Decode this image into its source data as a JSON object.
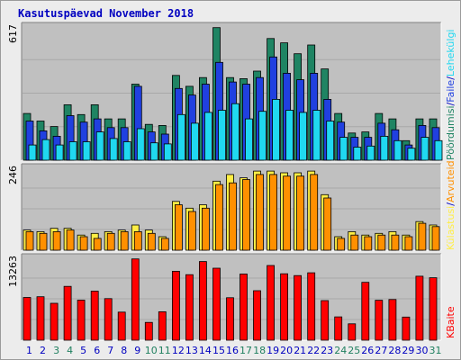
{
  "title": "Kasutuspäevad November 2018",
  "colors": {
    "visits": "#1f8463",
    "pages": "#2040e0",
    "files": "#20d8f0",
    "hits": "#ff9000",
    "sites": "#ffee44",
    "kbytes": "#ff0000",
    "day_weekday": "#0000c0",
    "day_weekend": "#208060",
    "panel": "#c0c0c0"
  },
  "legend": {
    "top": [
      {
        "text": "Pöördumisi",
        "color": "#1f8463"
      },
      {
        "text": "/",
        "color": "#0000c0"
      },
      {
        "text": "Faile",
        "color": "#2040e0"
      },
      {
        "text": "/",
        "color": "#0000c0"
      },
      {
        "text": "Lehekülgi",
        "color": "#20d8f0"
      }
    ],
    "middle": [
      {
        "text": "Külastusi",
        "color": "#ffee44"
      },
      {
        "text": "/",
        "color": "#0000c0"
      },
      {
        "text": "Arvuteid",
        "color": "#ff9000"
      }
    ],
    "bottom": [
      {
        "text": "KBaite",
        "color": "#ff0000"
      }
    ]
  },
  "chart_data": {
    "type": "bar",
    "x": [
      "1",
      "2",
      "3",
      "4",
      "5",
      "6",
      "7",
      "8",
      "9",
      "10",
      "11",
      "12",
      "13",
      "14",
      "15",
      "16",
      "17",
      "18",
      "19",
      "20",
      "21",
      "22",
      "23",
      "24",
      "25",
      "26",
      "27",
      "28",
      "29",
      "30",
      "31"
    ],
    "weekend_days": [
      "3",
      "4",
      "10",
      "11",
      "17",
      "18",
      "24",
      "25",
      "31"
    ],
    "panels": [
      {
        "ymax": 617,
        "ymax_label": "617",
        "series": [
          {
            "name": "Pöördumisi",
            "values": [
              215,
              180,
              155,
              255,
              210,
              255,
              190,
              190,
              350,
              165,
              160,
              390,
              340,
              380,
              610,
              380,
              375,
              410,
              560,
              540,
              490,
              530,
              420,
              215,
              125,
              130,
              215,
              190,
              90,
              190,
              190
            ]
          },
          {
            "name": "Faile",
            "values": [
              180,
              135,
              110,
              205,
              175,
              190,
              150,
              150,
              340,
              130,
              120,
              330,
              300,
              350,
              450,
              360,
              350,
              380,
              475,
              400,
              370,
              400,
              280,
              175,
              105,
              105,
              170,
              140,
              70,
              160,
              150
            ]
          },
          {
            "name": "Lehekülgi",
            "values": [
              70,
              95,
              70,
              85,
              85,
              130,
              100,
              85,
              145,
              80,
              75,
              210,
              170,
              220,
              230,
              260,
              190,
              225,
              280,
              230,
              220,
              230,
              180,
              105,
              60,
              65,
              110,
              90,
              55,
              105,
              90
            ]
          }
        ]
      },
      {
        "ymax": 246,
        "ymax_label": "246",
        "series": [
          {
            "name": "Külastusi",
            "values": [
              60,
              55,
              65,
              65,
              45,
              50,
              55,
              60,
              75,
              60,
              40,
              145,
              125,
              135,
              205,
              225,
              215,
              235,
              235,
              230,
              230,
              235,
              165,
              40,
              55,
              45,
              50,
              55,
              45,
              85,
              75
            ]
          },
          {
            "name": "Arvuteid",
            "values": [
              55,
              50,
              55,
              60,
              40,
              35,
              50,
              55,
              55,
              50,
              35,
              135,
              115,
              125,
              195,
              200,
              210,
              225,
              225,
              220,
              220,
              225,
              155,
              35,
              45,
              40,
              45,
              45,
              40,
              80,
              70
            ]
          }
        ]
      },
      {
        "ymax": 13263,
        "ymax_label": "13263",
        "series": [
          {
            "name": "KBaite",
            "values": [
              6850,
              6960,
              5910,
              8620,
              6420,
              7850,
              6660,
              4500,
              13020,
              2860,
              4550,
              11050,
              10500,
              12600,
              11530,
              6800,
              10600,
              7930,
              11970,
              10640,
              10350,
              10800,
              6350,
              3740,
              2630,
              9270,
              6400,
              6520,
              3710,
              10250,
              10000
            ]
          }
        ]
      }
    ]
  }
}
